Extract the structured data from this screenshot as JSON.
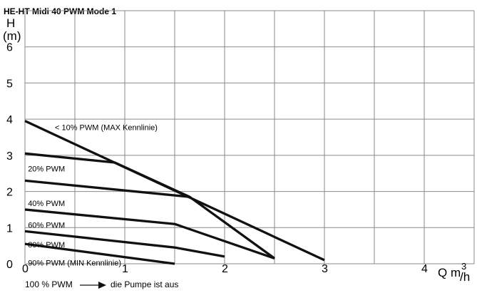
{
  "chart_data": {
    "type": "line",
    "title": "HE-HT Midi 40 PWM Mode 1",
    "ylabel_top": "H",
    "ylabel_bottom": "(m)",
    "xlabel": "Q m",
    "xlabel_sup": "3",
    "xlabel_suffix": "/h",
    "xlim": [
      0,
      4.5
    ],
    "ylim": [
      0,
      7
    ],
    "x_grid_step": 0.5,
    "y_grid_step": 1,
    "grid": true,
    "x_ticks": [
      {
        "value": 0,
        "label": "0"
      },
      {
        "value": 1,
        "label": "1"
      },
      {
        "value": 2,
        "label": "2"
      },
      {
        "value": 3,
        "label": "3"
      },
      {
        "value": 4,
        "label": "4"
      }
    ],
    "y_ticks": [
      {
        "value": 0,
        "label": "0"
      },
      {
        "value": 1,
        "label": "1"
      },
      {
        "value": 2,
        "label": "2"
      },
      {
        "value": 3,
        "label": "3"
      },
      {
        "value": 4,
        "label": "4"
      },
      {
        "value": 5,
        "label": "5"
      },
      {
        "value": 6,
        "label": "6"
      }
    ],
    "series": [
      {
        "name": "< 10% PWM (MAX Kennlinie)",
        "label_at": [
          0.3,
          3.7
        ],
        "points": [
          [
            0,
            3.95
          ],
          [
            3.0,
            0.1
          ]
        ]
      },
      {
        "name": "20% PWM",
        "label_at": [
          0.03,
          2.55
        ],
        "points": [
          [
            0,
            3.05
          ],
          [
            0.9,
            2.8
          ],
          [
            1.65,
            1.85
          ]
        ]
      },
      {
        "name": "40% PWM",
        "label_at": [
          0.03,
          1.6
        ],
        "points": [
          [
            0,
            2.3
          ],
          [
            1.65,
            1.85
          ],
          [
            2.5,
            0.15
          ]
        ]
      },
      {
        "name": "60% PWM",
        "label_at": [
          0.03,
          1.0
        ],
        "points": [
          [
            0,
            1.5
          ],
          [
            1.5,
            1.1
          ],
          [
            2.5,
            0.15
          ]
        ]
      },
      {
        "name": "80% PWM",
        "label_at": [
          0.03,
          0.45
        ],
        "points": [
          [
            0,
            0.9
          ],
          [
            1.5,
            0.45
          ],
          [
            2.0,
            0.2
          ]
        ]
      },
      {
        "name": "90% PWM (MIN Kennlinie)",
        "label_at": [
          0.03,
          -0.05
        ],
        "points": [
          [
            0,
            0.55
          ],
          [
            1.5,
            0.0
          ]
        ]
      }
    ],
    "footnote_left": "100 % PWM",
    "footnote_right": "die Pumpe ist aus"
  }
}
